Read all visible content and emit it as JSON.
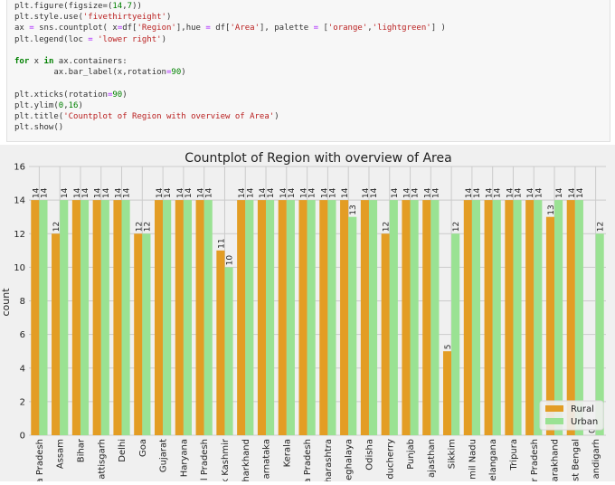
{
  "code_cell": {
    "lines": [
      [
        {
          "t": "plt.figure(figsize=(",
          "c": ""
        },
        {
          "t": "14",
          "c": "num"
        },
        {
          "t": ",",
          "c": ""
        },
        {
          "t": "7",
          "c": "num"
        },
        {
          "t": "))",
          "c": ""
        }
      ],
      [
        {
          "t": "plt.style.use(",
          "c": ""
        },
        {
          "t": "'fivethirtyeight'",
          "c": "str"
        },
        {
          "t": ")",
          "c": ""
        }
      ],
      [
        {
          "t": "ax ",
          "c": ""
        },
        {
          "t": "=",
          "c": "op"
        },
        {
          "t": " sns.countplot( x",
          "c": ""
        },
        {
          "t": "=",
          "c": "op"
        },
        {
          "t": "df[",
          "c": ""
        },
        {
          "t": "'Region'",
          "c": "str"
        },
        {
          "t": "],hue ",
          "c": ""
        },
        {
          "t": "=",
          "c": "op"
        },
        {
          "t": " df[",
          "c": ""
        },
        {
          "t": "'Area'",
          "c": "str"
        },
        {
          "t": "], palette ",
          "c": ""
        },
        {
          "t": "=",
          "c": "op"
        },
        {
          "t": " [",
          "c": ""
        },
        {
          "t": "'orange'",
          "c": "str"
        },
        {
          "t": ",",
          "c": ""
        },
        {
          "t": "'lightgreen'",
          "c": "str"
        },
        {
          "t": "] )",
          "c": ""
        }
      ],
      [
        {
          "t": "plt.legend(loc ",
          "c": ""
        },
        {
          "t": "=",
          "c": "op"
        },
        {
          "t": " ",
          "c": ""
        },
        {
          "t": "'lower right'",
          "c": "str"
        },
        {
          "t": ")",
          "c": ""
        }
      ],
      [],
      [
        {
          "t": "for",
          "c": "kw"
        },
        {
          "t": " x ",
          "c": ""
        },
        {
          "t": "in",
          "c": "kw"
        },
        {
          "t": " ax.containers:",
          "c": ""
        }
      ],
      [
        {
          "t": "        ax.bar_label(x,rotation",
          "c": ""
        },
        {
          "t": "=",
          "c": "op"
        },
        {
          "t": "90",
          "c": "num"
        },
        {
          "t": ")",
          "c": ""
        }
      ],
      [],
      [
        {
          "t": "plt.xticks(rotation",
          "c": ""
        },
        {
          "t": "=",
          "c": "op"
        },
        {
          "t": "90",
          "c": "num"
        },
        {
          "t": ")",
          "c": ""
        }
      ],
      [
        {
          "t": "plt.ylim(",
          "c": ""
        },
        {
          "t": "0",
          "c": "num"
        },
        {
          "t": ",",
          "c": ""
        },
        {
          "t": "16",
          "c": "num"
        },
        {
          "t": ")",
          "c": ""
        }
      ],
      [
        {
          "t": "plt.title(",
          "c": ""
        },
        {
          "t": "'Countplot of Region with overview of Area'",
          "c": "str"
        },
        {
          "t": ")",
          "c": ""
        }
      ],
      [
        {
          "t": "plt.show()",
          "c": ""
        }
      ]
    ]
  },
  "chart_data": {
    "type": "bar",
    "title": "Countplot of Region with overview of Area",
    "xlabel": "",
    "ylabel": "count",
    "ylim": [
      0,
      16
    ],
    "yticks": [
      0,
      2,
      4,
      6,
      8,
      10,
      12,
      14,
      16
    ],
    "grid": true,
    "legend_position": "lower-right",
    "categories": [
      "Andhra Pradesh",
      "Assam",
      "Bihar",
      "Chhattisgarh",
      "Delhi",
      "Goa",
      "Gujarat",
      "Haryana",
      "Himachal Pradesh",
      "Jammu & Kashmir",
      "Jharkhand",
      "Karnataka",
      "Kerala",
      "Madhya Pradesh",
      "Maharashtra",
      "Meghalaya",
      "Odisha",
      "Puducherry",
      "Punjab",
      "Rajasthan",
      "Sikkim",
      "Tamil Nadu",
      "Telangana",
      "Tripura",
      "Uttar Pradesh",
      "Uttarakhand",
      "West Bengal",
      "Chandigarh"
    ],
    "tick_labels_visible": [
      "a Pradesh",
      "Assam",
      "Bihar",
      "attisgarh",
      "Delhi",
      "Goa",
      "Gujarat",
      "Haryana",
      "l Pradesh",
      "k Kashmir",
      "harkhand",
      "arnataka",
      "Kerala",
      "a Pradesh",
      "harashtra",
      "eghalaya",
      "Odisha",
      "ducherry",
      "Punjab",
      "ajasthan",
      "Sikkim",
      "mil Nadu",
      "elangana",
      "Tripura",
      "r Pradesh",
      "arakhand",
      "st Bengal",
      "andigarh"
    ],
    "series": [
      {
        "name": "Rural",
        "color": "#e39d24",
        "values": [
          14,
          12,
          14,
          14,
          14,
          12,
          14,
          14,
          14,
          11,
          14,
          14,
          14,
          14,
          14,
          14,
          14,
          12,
          14,
          14,
          5,
          14,
          14,
          14,
          14,
          13,
          14,
          0
        ]
      },
      {
        "name": "Urban",
        "color": "#9ae293",
        "values": [
          14,
          14,
          14,
          14,
          14,
          12,
          14,
          14,
          14,
          10,
          14,
          14,
          14,
          14,
          14,
          13,
          14,
          14,
          14,
          14,
          12,
          14,
          14,
          14,
          14,
          14,
          14,
          12
        ]
      }
    ]
  }
}
